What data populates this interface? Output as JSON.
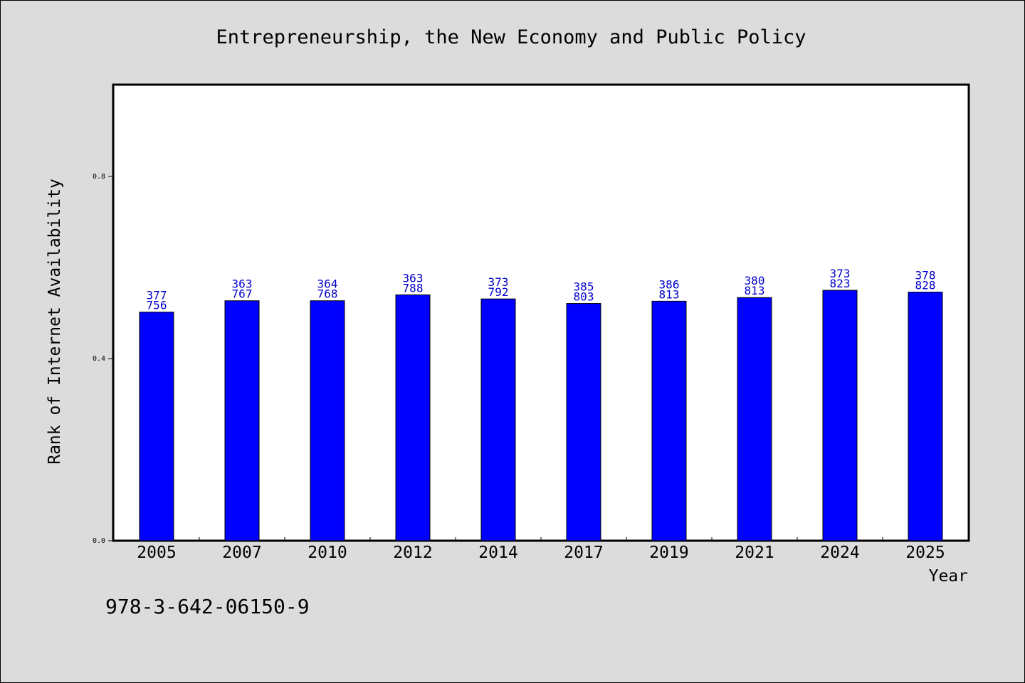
{
  "chart_data": {
    "type": "bar",
    "title": "Entrepreneurship, the New Economy and Public Policy",
    "xlabel": "Year",
    "ylabel": "Rank of Internet Availability",
    "categories": [
      "2005",
      "2007",
      "2010",
      "2012",
      "2014",
      "2017",
      "2019",
      "2021",
      "2024",
      "2025"
    ],
    "values": [
      0.502,
      0.527,
      0.527,
      0.54,
      0.531,
      0.521,
      0.526,
      0.534,
      0.55,
      0.546
    ],
    "data_labels": [
      "377\n756",
      "363\n767",
      "364\n768",
      "363\n788",
      "373\n792",
      "385\n803",
      "386\n813",
      "380\n813",
      "373\n823",
      "378\n828"
    ],
    "yticks": [
      0.0,
      0.4,
      0.8
    ],
    "ytick_labels": [
      "0.0",
      "0.4",
      "0.8"
    ],
    "ylim": [
      0,
      1.0
    ],
    "grid": false,
    "colors": {
      "bar": "#0000ff",
      "data_label": "#0000cc",
      "background": "#dcdcdc",
      "plot_background": "#ffffff"
    }
  },
  "footer": {
    "isbn": "978-3-642-06150-9"
  }
}
